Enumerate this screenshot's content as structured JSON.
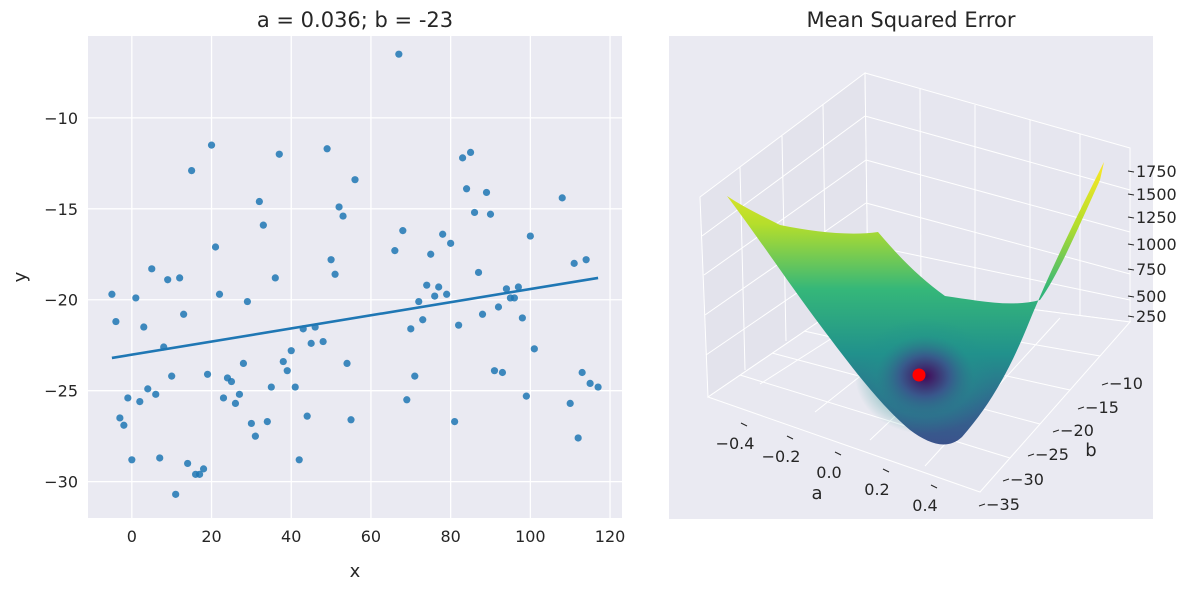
{
  "chart_data": [
    {
      "type": "scatter",
      "title": "a = 0.036; b = -23",
      "xlabel": "x",
      "ylabel": "y",
      "xlim": [
        -11,
        123
      ],
      "ylim": [
        -32,
        -5.5
      ],
      "xticks": [
        0,
        20,
        40,
        60,
        80,
        100,
        120
      ],
      "yticks": [
        -10,
        -15,
        -20,
        -25,
        -30
      ],
      "grid": true,
      "point_color": "#1f77b4",
      "line_color": "#1f77b4",
      "points": [
        [
          -5,
          -19.7
        ],
        [
          -4,
          -21.2
        ],
        [
          -3,
          -26.5
        ],
        [
          -2,
          -26.9
        ],
        [
          -1,
          -25.4
        ],
        [
          0,
          -28.8
        ],
        [
          1,
          -19.9
        ],
        [
          2,
          -25.6
        ],
        [
          3,
          -21.5
        ],
        [
          4,
          -24.9
        ],
        [
          5,
          -18.3
        ],
        [
          6,
          -25.2
        ],
        [
          7,
          -28.7
        ],
        [
          8,
          -22.6
        ],
        [
          9,
          -18.9
        ],
        [
          10,
          -24.2
        ],
        [
          11,
          -30.7
        ],
        [
          12,
          -18.8
        ],
        [
          13,
          -20.8
        ],
        [
          14,
          -29.0
        ],
        [
          15,
          -12.9
        ],
        [
          16,
          -29.6
        ],
        [
          17,
          -29.6
        ],
        [
          18,
          -29.3
        ],
        [
          19,
          -24.1
        ],
        [
          20,
          -11.5
        ],
        [
          21,
          -17.1
        ],
        [
          22,
          -19.7
        ],
        [
          23,
          -25.4
        ],
        [
          24,
          -24.3
        ],
        [
          25,
          -24.5
        ],
        [
          26,
          -25.7
        ],
        [
          27,
          -25.2
        ],
        [
          28,
          -23.5
        ],
        [
          29,
          -20.1
        ],
        [
          30,
          -26.8
        ],
        [
          31,
          -27.5
        ],
        [
          32,
          -14.6
        ],
        [
          33,
          -15.9
        ],
        [
          34,
          -26.7
        ],
        [
          35,
          -24.8
        ],
        [
          36,
          -18.8
        ],
        [
          37,
          -12.0
        ],
        [
          38,
          -23.4
        ],
        [
          39,
          -23.9
        ],
        [
          40,
          -22.8
        ],
        [
          41,
          -24.8
        ],
        [
          42,
          -28.8
        ],
        [
          43,
          -21.6
        ],
        [
          44,
          -26.4
        ],
        [
          45,
          -22.4
        ],
        [
          46,
          -21.5
        ],
        [
          48,
          -22.3
        ],
        [
          49,
          -11.7
        ],
        [
          50,
          -17.8
        ],
        [
          51,
          -18.6
        ],
        [
          52,
          -14.9
        ],
        [
          53,
          -15.4
        ],
        [
          54,
          -23.5
        ],
        [
          55,
          -26.6
        ],
        [
          56,
          -13.4
        ],
        [
          66,
          -17.3
        ],
        [
          67,
          -6.5
        ],
        [
          68,
          -16.2
        ],
        [
          69,
          -25.5
        ],
        [
          70,
          -21.6
        ],
        [
          71,
          -24.2
        ],
        [
          72,
          -20.1
        ],
        [
          73,
          -21.1
        ],
        [
          74,
          -19.2
        ],
        [
          75,
          -17.5
        ],
        [
          76,
          -19.8
        ],
        [
          77,
          -19.3
        ],
        [
          78,
          -16.4
        ],
        [
          79,
          -19.7
        ],
        [
          80,
          -16.9
        ],
        [
          81,
          -26.7
        ],
        [
          82,
          -21.4
        ],
        [
          83,
          -12.2
        ],
        [
          84,
          -13.9
        ],
        [
          85,
          -11.9
        ],
        [
          86,
          -15.2
        ],
        [
          87,
          -18.5
        ],
        [
          88,
          -20.8
        ],
        [
          89,
          -14.1
        ],
        [
          90,
          -15.3
        ],
        [
          91,
          -23.9
        ],
        [
          92,
          -20.4
        ],
        [
          93,
          -24.0
        ],
        [
          94,
          -19.4
        ],
        [
          95,
          -19.9
        ],
        [
          96,
          -19.9
        ],
        [
          97,
          -19.3
        ],
        [
          98,
          -21.0
        ],
        [
          99,
          -25.3
        ],
        [
          100,
          -16.5
        ],
        [
          101,
          -22.7
        ],
        [
          108,
          -14.4
        ],
        [
          110,
          -25.7
        ],
        [
          111,
          -18.0
        ],
        [
          112,
          -27.6
        ],
        [
          113,
          -24.0
        ],
        [
          114,
          -17.8
        ],
        [
          115,
          -24.6
        ],
        [
          117,
          -24.8
        ]
      ],
      "fit_line": {
        "x": [
          -5,
          117
        ],
        "y": [
          -23.2,
          -18.8
        ]
      }
    },
    {
      "type": "surface3d",
      "title": "Mean Squared Error",
      "xlabel": "a",
      "ylabel": "b",
      "a_ticks": [
        "-0.4",
        "-0.2",
        "0.0",
        "0.2",
        "0.4"
      ],
      "b_ticks": [
        "-10",
        "-15",
        "-20",
        "-25",
        "-30",
        "-35"
      ],
      "z_ticks": [
        "1750",
        "1500",
        "1250",
        "1000",
        "750",
        "500",
        "250"
      ],
      "colormap": "viridis",
      "minimum_marker_color": "#ff0000",
      "minimum": {
        "a": 0.036,
        "b": -23
      }
    }
  ]
}
